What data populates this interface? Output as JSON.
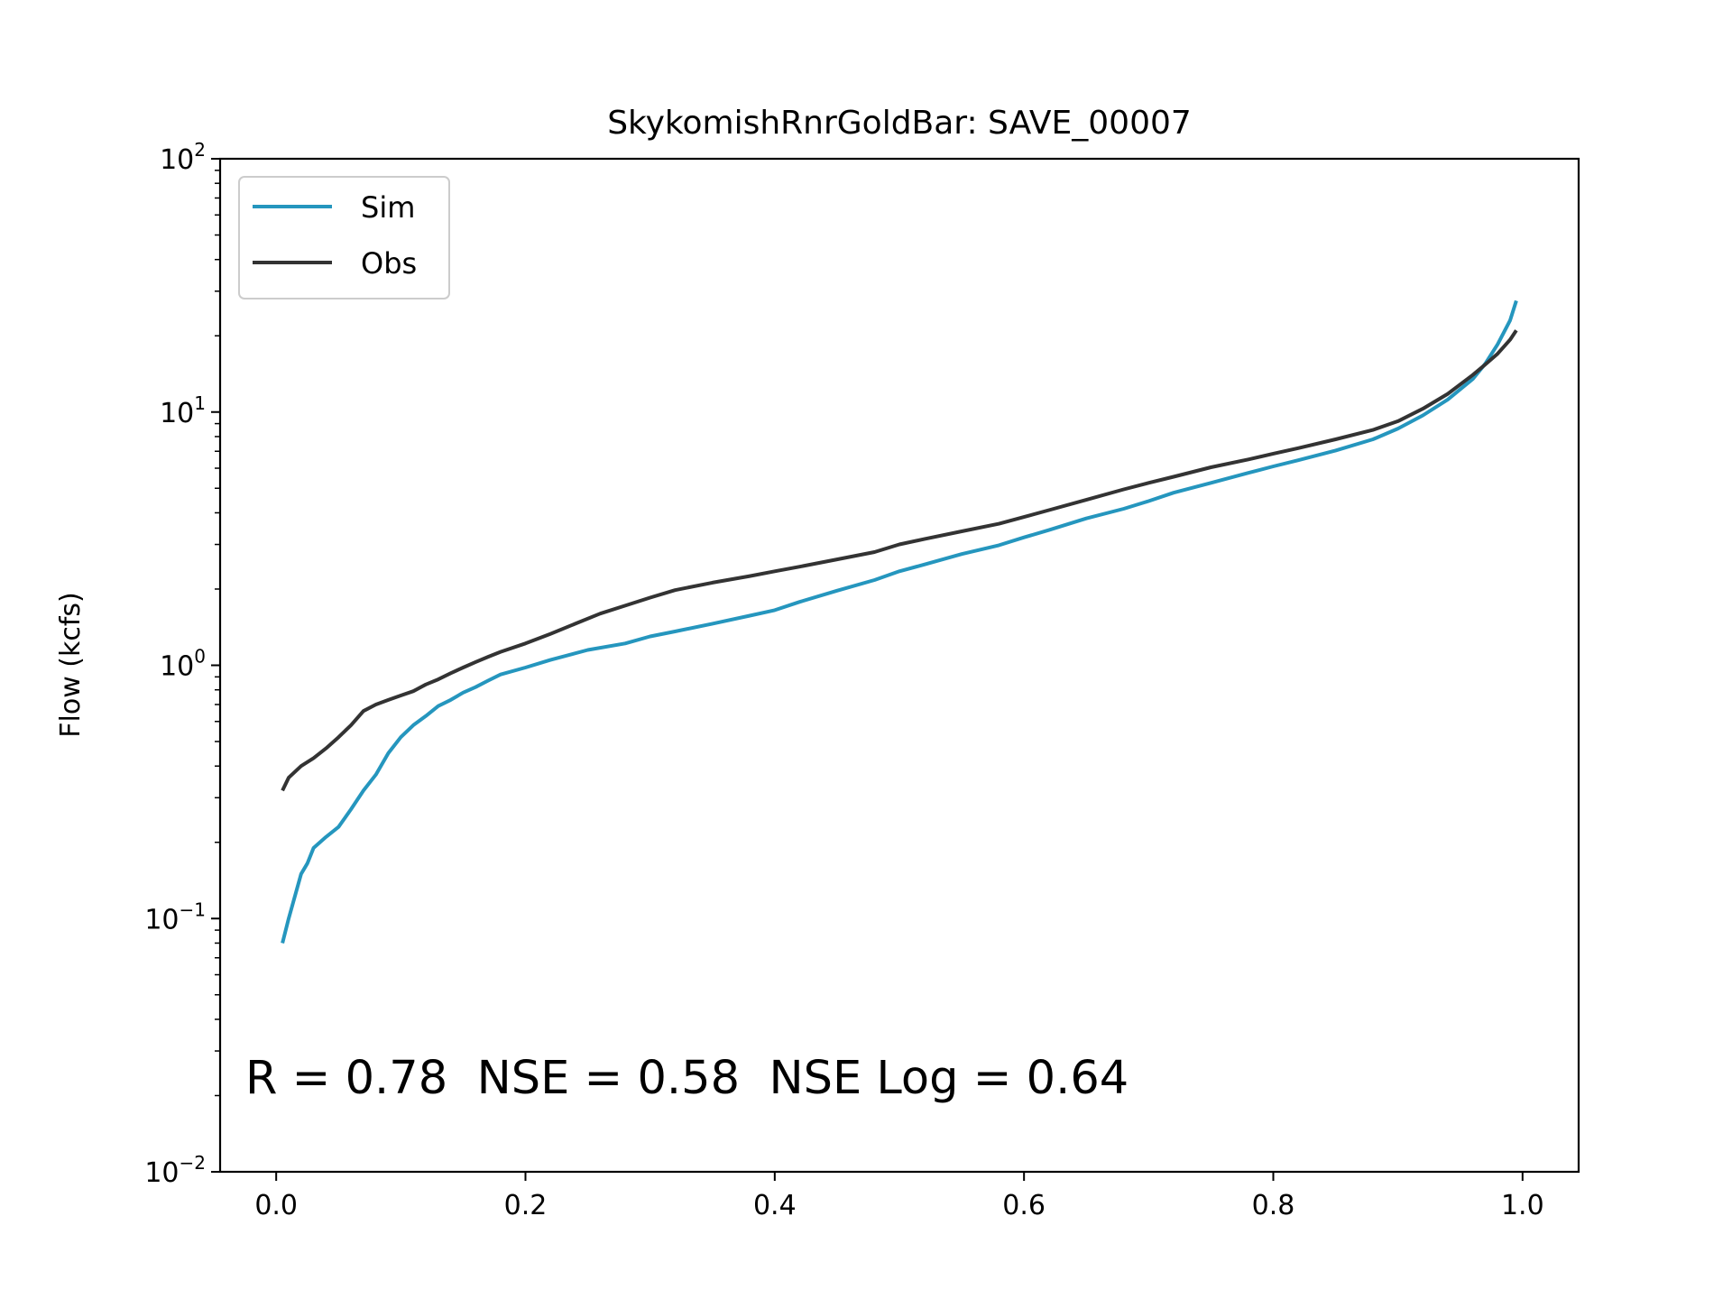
{
  "chart_data": {
    "type": "line",
    "title": "SkykomishRnrGoldBar: SAVE_00007",
    "xlabel": "",
    "ylabel": "Flow (kcfs)",
    "xlim": [
      -0.045,
      1.045
    ],
    "ylim": [
      0.01,
      100
    ],
    "yscale": "log",
    "xticks": [
      0.0,
      0.2,
      0.4,
      0.6,
      0.8,
      1.0
    ],
    "xtick_labels": [
      "0.0",
      "0.2",
      "0.4",
      "0.6",
      "0.8",
      "1.0"
    ],
    "yticks": [
      0.01,
      0.1,
      1,
      10,
      100
    ],
    "ytick_labels": [
      {
        "base": "10",
        "exp": "−2"
      },
      {
        "base": "10",
        "exp": "−1"
      },
      {
        "base": "10",
        "exp": "0"
      },
      {
        "base": "10",
        "exp": "1"
      },
      {
        "base": "10",
        "exp": "2"
      }
    ],
    "grid": false,
    "legend_position": "top-left",
    "annotation": "R = 0.78  NSE = 0.58  NSE Log = 0.64",
    "series": [
      {
        "name": "Sim",
        "color": "#2596be",
        "x": [
          0.005,
          0.01,
          0.02,
          0.025,
          0.03,
          0.04,
          0.05,
          0.06,
          0.07,
          0.08,
          0.09,
          0.1,
          0.11,
          0.12,
          0.13,
          0.14,
          0.15,
          0.16,
          0.17,
          0.18,
          0.2,
          0.22,
          0.25,
          0.28,
          0.3,
          0.32,
          0.35,
          0.38,
          0.4,
          0.42,
          0.45,
          0.48,
          0.5,
          0.52,
          0.55,
          0.58,
          0.6,
          0.62,
          0.65,
          0.68,
          0.7,
          0.72,
          0.75,
          0.78,
          0.8,
          0.82,
          0.85,
          0.88,
          0.9,
          0.92,
          0.94,
          0.96,
          0.97,
          0.98,
          0.99,
          0.995
        ],
        "y": [
          0.08,
          0.1,
          0.15,
          0.165,
          0.19,
          0.21,
          0.23,
          0.27,
          0.32,
          0.37,
          0.45,
          0.52,
          0.58,
          0.63,
          0.69,
          0.73,
          0.78,
          0.82,
          0.87,
          0.92,
          0.98,
          1.05,
          1.15,
          1.22,
          1.3,
          1.36,
          1.46,
          1.57,
          1.65,
          1.78,
          1.97,
          2.17,
          2.35,
          2.5,
          2.75,
          2.98,
          3.2,
          3.42,
          3.8,
          4.15,
          4.45,
          4.8,
          5.25,
          5.75,
          6.1,
          6.45,
          7.05,
          7.8,
          8.6,
          9.7,
          11.2,
          13.5,
          15.5,
          18.5,
          23.0,
          27.5
        ]
      },
      {
        "name": "Obs",
        "color": "#333333",
        "x": [
          0.005,
          0.01,
          0.02,
          0.03,
          0.04,
          0.05,
          0.06,
          0.07,
          0.08,
          0.09,
          0.1,
          0.11,
          0.12,
          0.13,
          0.14,
          0.15,
          0.16,
          0.17,
          0.18,
          0.2,
          0.22,
          0.24,
          0.26,
          0.28,
          0.3,
          0.32,
          0.35,
          0.38,
          0.4,
          0.42,
          0.45,
          0.48,
          0.5,
          0.52,
          0.55,
          0.58,
          0.6,
          0.62,
          0.65,
          0.68,
          0.7,
          0.72,
          0.75,
          0.78,
          0.8,
          0.82,
          0.85,
          0.88,
          0.9,
          0.92,
          0.94,
          0.96,
          0.97,
          0.98,
          0.99,
          0.995
        ],
        "y": [
          0.32,
          0.36,
          0.4,
          0.43,
          0.47,
          0.52,
          0.58,
          0.66,
          0.7,
          0.73,
          0.76,
          0.79,
          0.84,
          0.88,
          0.93,
          0.98,
          1.03,
          1.08,
          1.13,
          1.22,
          1.33,
          1.46,
          1.6,
          1.72,
          1.85,
          1.98,
          2.12,
          2.25,
          2.35,
          2.45,
          2.62,
          2.8,
          3.0,
          3.15,
          3.38,
          3.62,
          3.85,
          4.1,
          4.5,
          4.95,
          5.25,
          5.55,
          6.05,
          6.5,
          6.85,
          7.2,
          7.8,
          8.5,
          9.2,
          10.3,
          11.8,
          14.0,
          15.4,
          17.0,
          19.3,
          21.0
        ]
      }
    ]
  }
}
